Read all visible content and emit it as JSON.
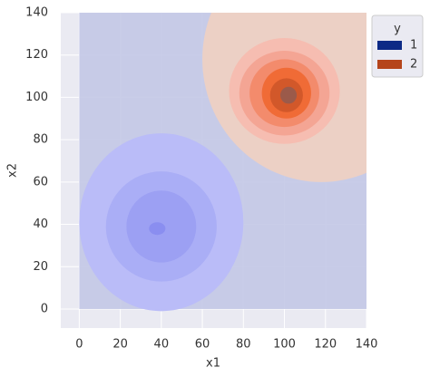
{
  "chart_data": {
    "type": "contour",
    "x_label": "x1",
    "y_label": "x2",
    "xlim": [
      -9,
      140
    ],
    "ylim": [
      -9,
      140
    ],
    "xticks": [
      0,
      20,
      40,
      60,
      80,
      100,
      120,
      140
    ],
    "yticks": [
      0,
      20,
      40,
      60,
      80,
      100,
      120,
      140
    ],
    "grid": true,
    "legend_title": "y",
    "legend_position": "outside right",
    "region_boundary": {
      "cx": 118,
      "cy": 118,
      "r": 58
    },
    "series": [
      {
        "name": "1",
        "color": "#0d2a86",
        "region_color": "#c3c8e6",
        "contours": [
          {
            "x": 40,
            "y": 41,
            "rx": 40,
            "ry": 42,
            "color": "#babcf8"
          },
          {
            "x": 40,
            "y": 39,
            "rx": 27,
            "ry": 26,
            "color": "#aaaef6"
          },
          {
            "x": 40,
            "y": 39,
            "rx": 17,
            "ry": 17,
            "color": "#9ca0f3"
          },
          {
            "x": 38,
            "y": 38,
            "rx": 4,
            "ry": 3,
            "color": "#8a8ef0"
          }
        ]
      },
      {
        "name": "2",
        "color": "#b5451b",
        "region_color": "#ecd0c5",
        "contours": [
          {
            "x": 100,
            "y": 103,
            "rx": 27,
            "ry": 25,
            "color": "#f6bdb1"
          },
          {
            "x": 100,
            "y": 102,
            "rx": 22,
            "ry": 20,
            "color": "#f4a594"
          },
          {
            "x": 100,
            "y": 102,
            "rx": 17,
            "ry": 16,
            "color": "#f38b6c"
          },
          {
            "x": 101,
            "y": 102,
            "rx": 12,
            "ry": 12,
            "color": "#f06b36"
          },
          {
            "x": 101,
            "y": 101,
            "rx": 8,
            "ry": 8,
            "color": "#d2582a"
          },
          {
            "x": 102,
            "y": 101,
            "rx": 4,
            "ry": 4,
            "color": "#9b5a4a"
          }
        ]
      }
    ]
  }
}
